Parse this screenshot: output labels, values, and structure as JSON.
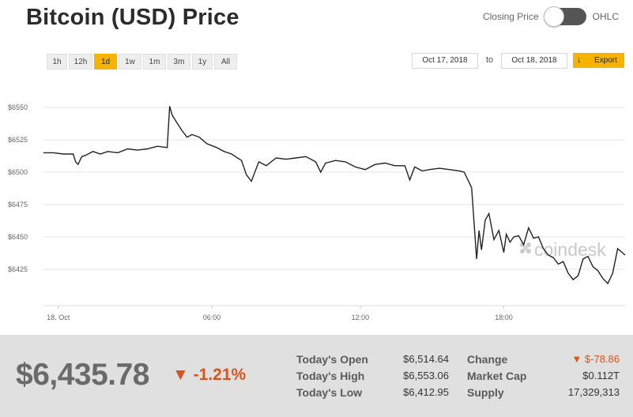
{
  "header": {
    "title": "Bitcoin (USD) Price",
    "toggle_left": "Closing Price",
    "toggle_right": "OHLC"
  },
  "ranges": [
    "1h",
    "12h",
    "1d",
    "1w",
    "1m",
    "3m",
    "1y",
    "All"
  ],
  "active_range": "1d",
  "date_range": {
    "from": "Oct 17, 2018",
    "to_label": "to",
    "to": "Oct 18, 2018"
  },
  "export_label": "Export",
  "watermark": "coindesk",
  "chart_data": {
    "type": "line",
    "x_tick_labels": [
      "18. Oct",
      "06:00",
      "12:00",
      "18:00"
    ],
    "y_tick_labels": [
      "$6550",
      "$6525",
      "$6500",
      "$6475",
      "$6450",
      "$6425"
    ],
    "ylim": [
      6400,
      6560
    ],
    "xlim_hours": [
      0,
      23.5
    ],
    "grid": true,
    "series": [
      {
        "x_hours": [
          0.0,
          0.4,
          0.8,
          1.2,
          1.3,
          1.4,
          1.55,
          1.7,
          2.0,
          2.3,
          2.6,
          3.0,
          3.4,
          3.8,
          4.2,
          4.6,
          5.0,
          5.1,
          5.2,
          5.4,
          5.6,
          5.8,
          6.0,
          6.3,
          6.6,
          7.0,
          7.3,
          7.6,
          8.0,
          8.2,
          8.4,
          8.7,
          9.0,
          9.4,
          9.8,
          10.2,
          10.6,
          11.0,
          11.2,
          11.4,
          11.8,
          12.2,
          12.6,
          13.0,
          13.4,
          13.8,
          14.2,
          14.6,
          14.8,
          15.0,
          15.3,
          15.6,
          16.0,
          16.4,
          16.8,
          17.0,
          17.3,
          17.5,
          17.6,
          17.7,
          17.85,
          18.0,
          18.2,
          18.4,
          18.6,
          18.7,
          18.85,
          19.0,
          19.2,
          19.4,
          19.6,
          19.8,
          20.0,
          20.2,
          20.4,
          20.6,
          20.8,
          21.0,
          21.2,
          21.4,
          21.6,
          21.8,
          22.0,
          22.2,
          22.4,
          22.6,
          22.8,
          23.0,
          23.2,
          23.5
        ],
        "values": [
          6515,
          6515,
          6514,
          6514,
          6508,
          6506,
          6512,
          6513,
          6516,
          6514,
          6516,
          6515,
          6518,
          6517,
          6518,
          6520,
          6519,
          6551,
          6544,
          6538,
          6532,
          6527,
          6529,
          6527,
          6522,
          6519,
          6516,
          6514,
          6509,
          6498,
          6493,
          6508,
          6505,
          6511,
          6510,
          6511,
          6512,
          6508,
          6500,
          6507,
          6509,
          6508,
          6504,
          6502,
          6506,
          6507,
          6505,
          6505,
          6494,
          6504,
          6501,
          6502,
          6503,
          6502,
          6501,
          6500,
          6488,
          6433,
          6455,
          6440,
          6463,
          6468,
          6448,
          6455,
          6438,
          6452,
          6446,
          6450,
          6451,
          6444,
          6457,
          6449,
          6450,
          6441,
          6436,
          6434,
          6429,
          6431,
          6422,
          6417,
          6420,
          6433,
          6435,
          6427,
          6424,
          6418,
          6414,
          6422,
          6441,
          6436
        ]
      }
    ]
  },
  "summary": {
    "price": "$6,435.78",
    "change_pct": "-1.21%",
    "change_arrow": "▼",
    "stats_left": [
      {
        "label": "Today's Open",
        "value": "$6,514.64"
      },
      {
        "label": "Today's High",
        "value": "$6,553.06"
      },
      {
        "label": "Today's Low",
        "value": "$6,412.95"
      }
    ],
    "stats_right": [
      {
        "label": "Change",
        "value": "▼ $-78.86"
      },
      {
        "label": "Market Cap",
        "value": "$0.112T"
      },
      {
        "label": "Supply",
        "value": "17,329,313"
      }
    ]
  },
  "colors": {
    "accent": "#f6b400",
    "negative": "#d9541e",
    "line": "#222222",
    "grid": "#e6e6e6",
    "summary_bg": "#e0e0e0"
  }
}
